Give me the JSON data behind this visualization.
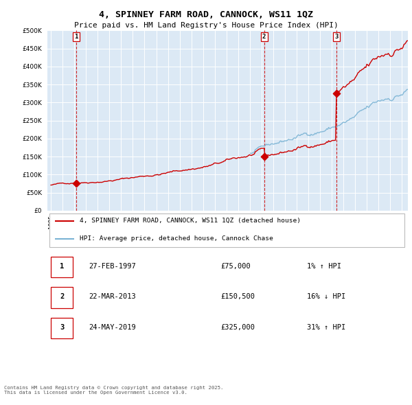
{
  "title": "4, SPINNEY FARM ROAD, CANNOCK, WS11 1QZ",
  "subtitle": "Price paid vs. HM Land Registry's House Price Index (HPI)",
  "legend_line1": "4, SPINNEY FARM ROAD, CANNOCK, WS11 1QZ (detached house)",
  "legend_line2": "HPI: Average price, detached house, Cannock Chase",
  "sales": [
    {
      "label": "1",
      "date_str": "27-FEB-1997",
      "price": 75000,
      "year": 1997.15,
      "hpi_pct": "1% ↑ HPI"
    },
    {
      "label": "2",
      "date_str": "22-MAR-2013",
      "price": 150500,
      "year": 2013.22,
      "hpi_pct": "16% ↓ HPI"
    },
    {
      "label": "3",
      "date_str": "24-MAY-2019",
      "price": 325000,
      "year": 2019.39,
      "hpi_pct": "31% ↑ HPI"
    }
  ],
  "footer": "Contains HM Land Registry data © Crown copyright and database right 2025.\nThis data is licensed under the Open Government Licence v3.0.",
  "hpi_color": "#7ab3d4",
  "price_color": "#cc0000",
  "vline_color": "#cc0000",
  "plot_bg": "#dce9f5",
  "grid_color": "#ffffff",
  "ylim": [
    0,
    500000
  ],
  "yticks": [
    0,
    50000,
    100000,
    150000,
    200000,
    250000,
    300000,
    350000,
    400000,
    450000,
    500000
  ],
  "xstart": 1995,
  "xend": 2026
}
